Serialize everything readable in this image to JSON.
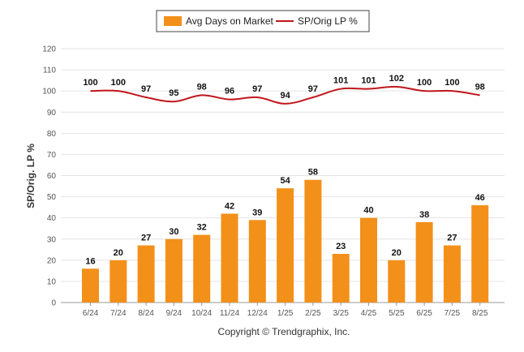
{
  "chart_data": {
    "type": "bar",
    "categories": [
      "6/24",
      "7/24",
      "8/24",
      "9/24",
      "10/24",
      "11/24",
      "12/24",
      "1/25",
      "2/25",
      "3/25",
      "4/25",
      "5/25",
      "6/25",
      "7/25",
      "8/25"
    ],
    "series": [
      {
        "name": "Avg Days on Market",
        "type": "bar",
        "color": "#F39019",
        "values": [
          16,
          20,
          27,
          30,
          32,
          42,
          39,
          54,
          58,
          23,
          40,
          20,
          38,
          27,
          46
        ]
      },
      {
        "name": "SP/Orig LP %",
        "type": "line",
        "color": "#C0161C",
        "values": [
          100,
          100,
          97,
          95,
          98,
          96,
          97,
          94,
          97,
          101,
          101,
          102,
          100,
          100,
          98
        ]
      }
    ],
    "ylabel": "SP/Orig. LP %",
    "ylim": [
      0,
      120
    ],
    "yticks": [
      0,
      10,
      20,
      30,
      40,
      50,
      60,
      70,
      80,
      90,
      100,
      110,
      120
    ],
    "grid": true,
    "legend": "top-center"
  },
  "credit": "Copyright © Trendgraphix, Inc."
}
